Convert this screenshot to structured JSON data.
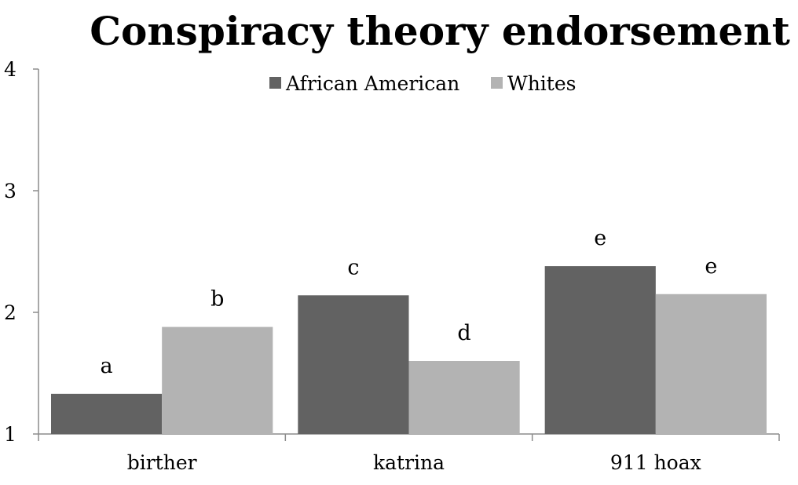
{
  "chart_data": {
    "type": "bar",
    "title": "Conspiracy theory endorsement",
    "categories": [
      "birther",
      "katrina",
      "911 hoax"
    ],
    "series": [
      {
        "name": "African American",
        "color": "#626262",
        "values": [
          1.33,
          2.14,
          2.38
        ],
        "labels": [
          "a",
          "c",
          "e"
        ]
      },
      {
        "name": "Whites",
        "color": "#b3b3b3",
        "values": [
          1.88,
          1.6,
          2.15
        ],
        "labels": [
          "b",
          "d",
          "e"
        ]
      }
    ],
    "ylim": [
      1,
      4
    ],
    "yticks": [
      "1",
      "2",
      "3",
      "4"
    ],
    "xlabel": "",
    "ylabel": "",
    "grid": false,
    "legend_position": "top-center"
  }
}
